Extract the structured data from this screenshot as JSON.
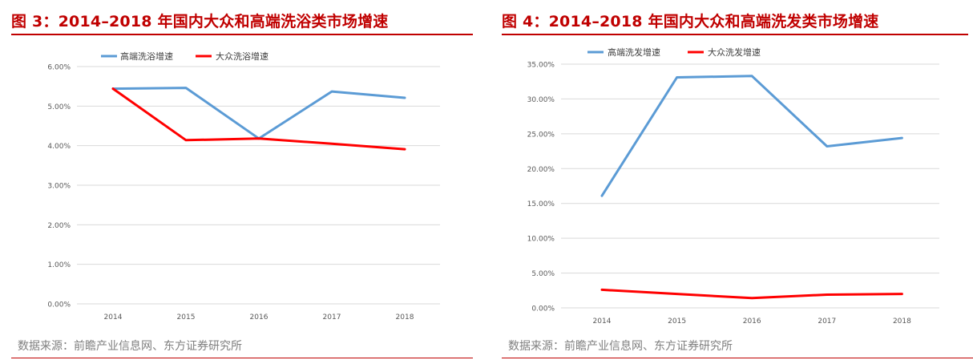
{
  "figures": [
    {
      "title": "图 3：2014–2018 年国内大众和高端洗浴类市场增速",
      "source": "数据来源：前瞻产业信息网、东方证券研究所"
    },
    {
      "title": "图 4：2014–2018 年国内大众和高端洗发类市场增速",
      "source": "数据来源：前瞻产业信息网、东方证券研究所"
    }
  ],
  "chart_data": [
    {
      "type": "line",
      "title": "",
      "xlabel": "",
      "ylabel": "",
      "x": [
        "2014",
        "2015",
        "2016",
        "2017",
        "2018"
      ],
      "y_ticks": [
        "0.00%",
        "1.00%",
        "2.00%",
        "3.00%",
        "4.00%",
        "5.00%",
        "6.00%"
      ],
      "ylim": [
        0,
        6
      ],
      "grid": true,
      "legend_position": "top-left",
      "series": [
        {
          "name": "高端洗浴增速",
          "color": "#5b9bd5",
          "values": [
            5.44,
            5.46,
            4.18,
            5.37,
            5.21
          ]
        },
        {
          "name": "大众洗浴增速",
          "color": "#ff0000",
          "values": [
            5.44,
            4.14,
            4.18,
            4.05,
            3.91
          ]
        }
      ]
    },
    {
      "type": "line",
      "title": "",
      "xlabel": "",
      "ylabel": "",
      "x": [
        "2014",
        "2015",
        "2016",
        "2017",
        "2018"
      ],
      "y_ticks": [
        "0.00%",
        "5.00%",
        "10.00%",
        "15.00%",
        "20.00%",
        "25.00%",
        "30.00%",
        "35.00%"
      ],
      "ylim": [
        0,
        35
      ],
      "grid": true,
      "legend_position": "top-left",
      "series": [
        {
          "name": "高端洗发增速",
          "color": "#5b9bd5",
          "values": [
            16.1,
            33.1,
            33.3,
            23.2,
            24.4
          ]
        },
        {
          "name": "大众洗发增速",
          "color": "#ff0000",
          "values": [
            2.6,
            2.0,
            1.4,
            1.9,
            2.0
          ]
        }
      ]
    }
  ]
}
